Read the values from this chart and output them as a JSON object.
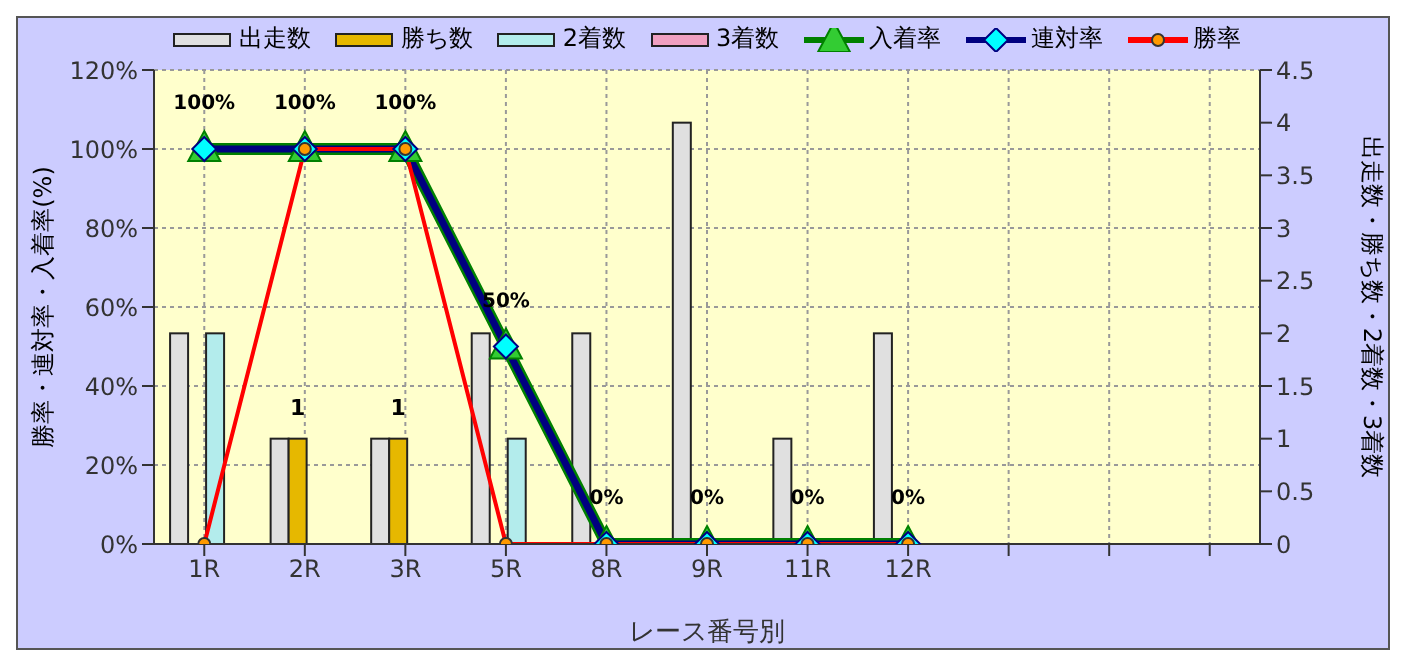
{
  "chart_data": {
    "type": "bar",
    "xlabel": "レース番号別",
    "ylabel": "勝率・連対率・入着率(%)",
    "y2label": "出走数・勝ち数・2着数・3着数",
    "categories": [
      "1R",
      "2R",
      "3R",
      "5R",
      "8R",
      "9R",
      "11R",
      "12R",
      null,
      null,
      null
    ],
    "series": [
      {
        "name": "出走数",
        "axis": "y2",
        "color": "#e0e0e0",
        "values": [
          2,
          1,
          1,
          2,
          2,
          4,
          1,
          2,
          null,
          null,
          null
        ]
      },
      {
        "name": "勝ち数",
        "axis": "y2",
        "color": "#e6b800",
        "values": [
          0,
          1,
          1,
          0,
          0,
          0,
          0,
          0,
          null,
          null,
          null
        ],
        "value_labels": [
          null,
          "1",
          "1",
          null,
          null,
          null,
          null,
          null,
          null,
          null,
          null
        ]
      },
      {
        "name": "2着数",
        "axis": "y2",
        "color": "#b3ecec",
        "values": [
          2,
          0,
          0,
          1,
          0,
          0,
          0,
          0,
          null,
          null,
          null
        ]
      },
      {
        "name": "3着数",
        "axis": "y2",
        "color": "#f0a0c0",
        "values": [
          0,
          0,
          0,
          0,
          0,
          0,
          0,
          0,
          null,
          null,
          null
        ]
      },
      {
        "name": "入着率",
        "type": "line",
        "color": "#008000",
        "marker": "triangle",
        "values": [
          100,
          100,
          100,
          50,
          0,
          0,
          0,
          0,
          null,
          null,
          null
        ],
        "value_labels": [
          "100%",
          "100%",
          "100%",
          "50%",
          "0%",
          "0%",
          "0%",
          "0%",
          null,
          null,
          null
        ]
      },
      {
        "name": "連対率",
        "type": "line",
        "color": "#000080",
        "marker": "diamond",
        "values": [
          100,
          100,
          100,
          50,
          0,
          0,
          0,
          0,
          null,
          null,
          null
        ]
      },
      {
        "name": "勝率",
        "type": "line",
        "color": "#ff0000",
        "marker": "circle",
        "values": [
          0,
          100,
          100,
          0,
          0,
          0,
          0,
          0,
          null,
          null,
          null
        ]
      }
    ],
    "ylim": [
      0,
      120
    ],
    "yticks": [
      {
        "value": 0,
        "label": "0%"
      },
      {
        "value": 20,
        "label": "20%"
      },
      {
        "value": 40,
        "label": "40%"
      },
      {
        "value": 60,
        "label": "60%"
      },
      {
        "value": 80,
        "label": "80%"
      },
      {
        "value": 100,
        "label": "100%"
      },
      {
        "value": 120,
        "label": "120%"
      }
    ],
    "y2lim": [
      0,
      4.5
    ],
    "y2ticks": [
      0,
      0.5,
      1,
      1.5,
      2,
      2.5,
      3,
      3.5,
      4,
      4.5
    ],
    "grid": true,
    "legend": "top"
  }
}
